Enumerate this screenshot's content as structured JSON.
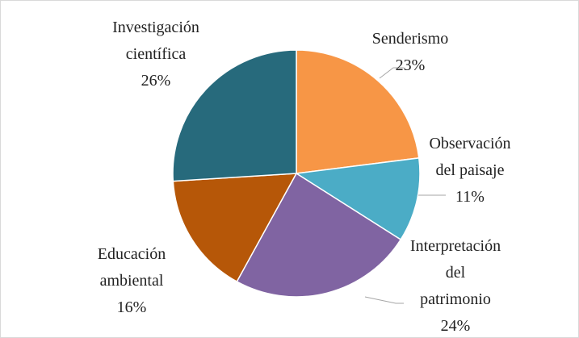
{
  "chart_data": {
    "type": "pie",
    "categories": [
      "Senderismo",
      "Observación del paisaje",
      "Interpretación del patrimonio",
      "Educación ambiental",
      "Investigación científica"
    ],
    "values": [
      23,
      11,
      24,
      16,
      26
    ],
    "value_labels": [
      "23%",
      "11%",
      "24%",
      "16%",
      "26%"
    ],
    "colors": [
      "#F79646",
      "#4BACC6",
      "#8064A2",
      "#B65708",
      "#276A7C"
    ]
  }
}
